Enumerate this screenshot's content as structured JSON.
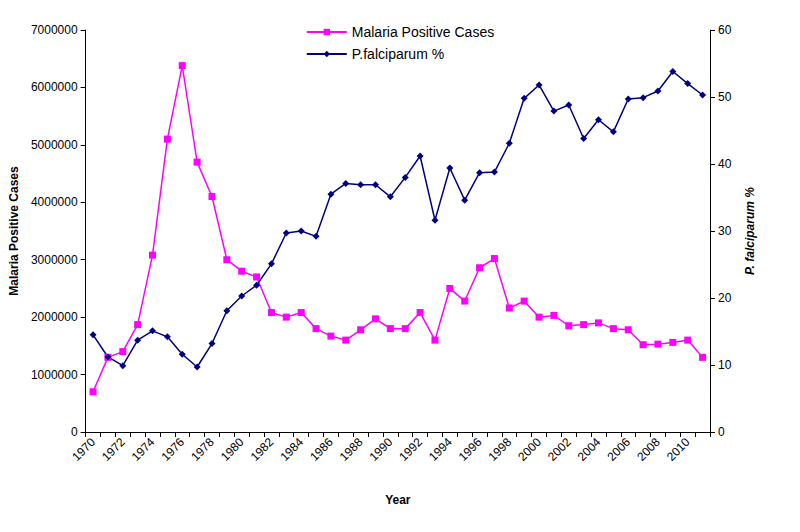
{
  "chart_data": {
    "type": "line",
    "x_label": "Year",
    "y_label": "Malaria Positive Cases",
    "y2_label": "P. falciparum %",
    "categories": [
      "1970",
      null,
      "1972",
      null,
      "1974",
      null,
      "1976",
      null,
      "1978",
      null,
      "1980",
      null,
      "1982",
      null,
      "1984",
      null,
      "1986",
      null,
      "1988",
      null,
      "1990",
      null,
      "1992",
      null,
      "1994",
      null,
      "1996",
      null,
      "1998",
      null,
      "2000",
      null,
      "2002",
      null,
      "2004",
      null,
      "2006",
      null,
      "2008",
      null,
      "2010",
      null
    ],
    "series": [
      {
        "name": "Malaria Positive Cases",
        "color": "#ff00ff",
        "marker": "square",
        "values": [
          700000,
          1300000,
          1400000,
          1870000,
          3080000,
          5100000,
          6380000,
          4700000,
          4100000,
          3000000,
          2800000,
          2700000,
          2080000,
          2000000,
          2080000,
          1800000,
          1670000,
          1600000,
          1780000,
          1970000,
          1800000,
          1800000,
          2080000,
          1600000,
          2500000,
          2280000,
          2860000,
          3020000,
          2160000,
          2280000,
          2000000,
          2030000,
          1850000,
          1870000,
          1900000,
          1800000,
          1780000,
          1520000,
          1530000,
          1560000,
          1600000,
          1300000
        ]
      },
      {
        "name": "P.falciparum %",
        "color": "#000080",
        "marker": "diamond",
        "axis": "y2",
        "values": [
          14.5,
          11.2,
          9.9,
          13.7,
          15.1,
          14.2,
          11.6,
          9.7,
          13.2,
          18.1,
          20.3,
          21.9,
          25.1,
          29.7,
          30.0,
          29.2,
          35.5,
          37.1,
          36.9,
          36.9,
          35.1,
          38.0,
          41.2,
          31.6,
          39.4,
          34.6,
          38.7,
          38.8,
          43.1,
          49.8,
          51.8,
          47.9,
          48.8,
          43.8,
          46.6,
          44.8,
          49.7,
          49.9,
          50.9,
          53.8,
          52.0,
          50.3
        ]
      }
    ],
    "ylim": [
      0,
      7000000
    ],
    "yticks": [
      0,
      1000000,
      2000000,
      3000000,
      4000000,
      5000000,
      6000000,
      7000000
    ],
    "y2lim": [
      0,
      60
    ],
    "y2ticks": [
      0,
      10,
      20,
      30,
      40,
      50,
      60
    ],
    "grid": false,
    "legend": "top"
  }
}
